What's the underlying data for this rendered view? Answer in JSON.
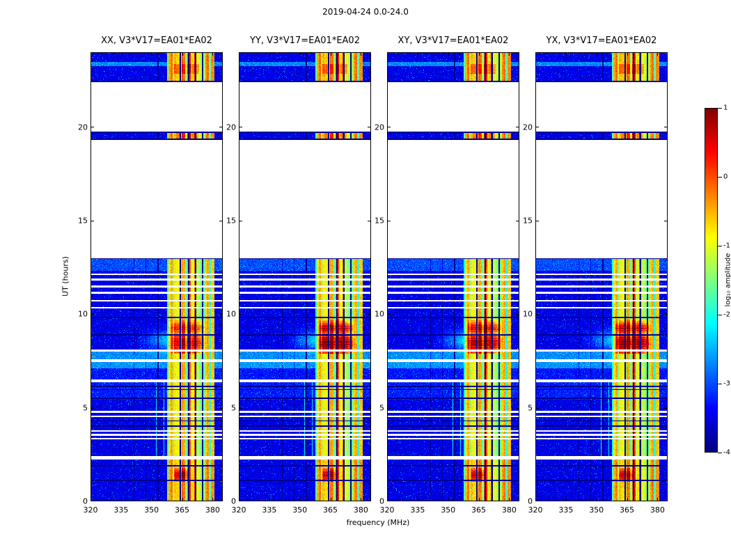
{
  "title": "2019-04-24 0.0-24.0",
  "chart_data": {
    "type": "heatmap",
    "title": "2019-04-24 0.0-24.0",
    "x_label": "frequency (MHz)",
    "y_label": "UT (hours)",
    "x_range": [
      320,
      385
    ],
    "y_range": [
      0,
      24
    ],
    "x_ticks": [
      320,
      335,
      350,
      365,
      380
    ],
    "y_ticks": [
      0,
      5,
      10,
      15,
      20
    ],
    "grid": false,
    "layout_hint": "4 vertical spectrogram panels side by side with shared colorbar at right",
    "color_scale": {
      "type": "jet",
      "min": -4,
      "max": 1,
      "label": "log₁₀ amplitude",
      "ticks": [
        1,
        0,
        -1,
        -2,
        -3,
        -4
      ]
    },
    "panels": [
      {
        "title": "XX, V3*V17=EA01*EA02",
        "blob_gain": 1.65,
        "seed": 11
      },
      {
        "title": "YY, V3*V17=EA01*EA02",
        "blob_gain": 2.3,
        "seed": 23
      },
      {
        "title": "XY, V3*V17=EA01*EA02",
        "blob_gain": 2.0,
        "seed": 37
      },
      {
        "title": "YX, V3*V17=EA01*EA02",
        "blob_gain": 2.2,
        "seed": 49
      }
    ],
    "data_segments_ut": [
      [
        0.0,
        2.25
      ],
      [
        2.4,
        6.35
      ],
      [
        6.5,
        7.45
      ],
      [
        7.6,
        13.0
      ],
      [
        19.3,
        19.75
      ],
      [
        22.4,
        24.0
      ]
    ],
    "dropout_lines_ut": [
      3.35,
      3.55,
      3.75,
      4.55,
      4.78,
      8.06,
      10.35,
      10.72,
      11.15,
      11.48,
      11.85,
      12.12
    ],
    "dark_lines_ut": [
      1.12,
      1.9,
      4.02,
      4.3,
      5.5,
      5.97,
      6.14,
      8.9,
      9.82,
      12.97,
      19.35,
      19.72,
      22.44
    ],
    "rfi_band_mhz": [
      357.5,
      381.0
    ],
    "dark_channels_mhz": [
      353.2,
      364.2,
      368.1,
      371.6,
      375.2
    ],
    "faint_dark_channels_mhz": [
      341.3,
      347.2
    ],
    "bright_blob": {
      "ut": [
        7.9,
        9.7
      ],
      "mhz": [
        359,
        377
      ],
      "peak_ut": 8.45
    },
    "low_blob": {
      "ut": [
        1.05,
        1.8
      ],
      "mhz": [
        360.5,
        368.5
      ],
      "peak_ut": 1.4
    }
  }
}
